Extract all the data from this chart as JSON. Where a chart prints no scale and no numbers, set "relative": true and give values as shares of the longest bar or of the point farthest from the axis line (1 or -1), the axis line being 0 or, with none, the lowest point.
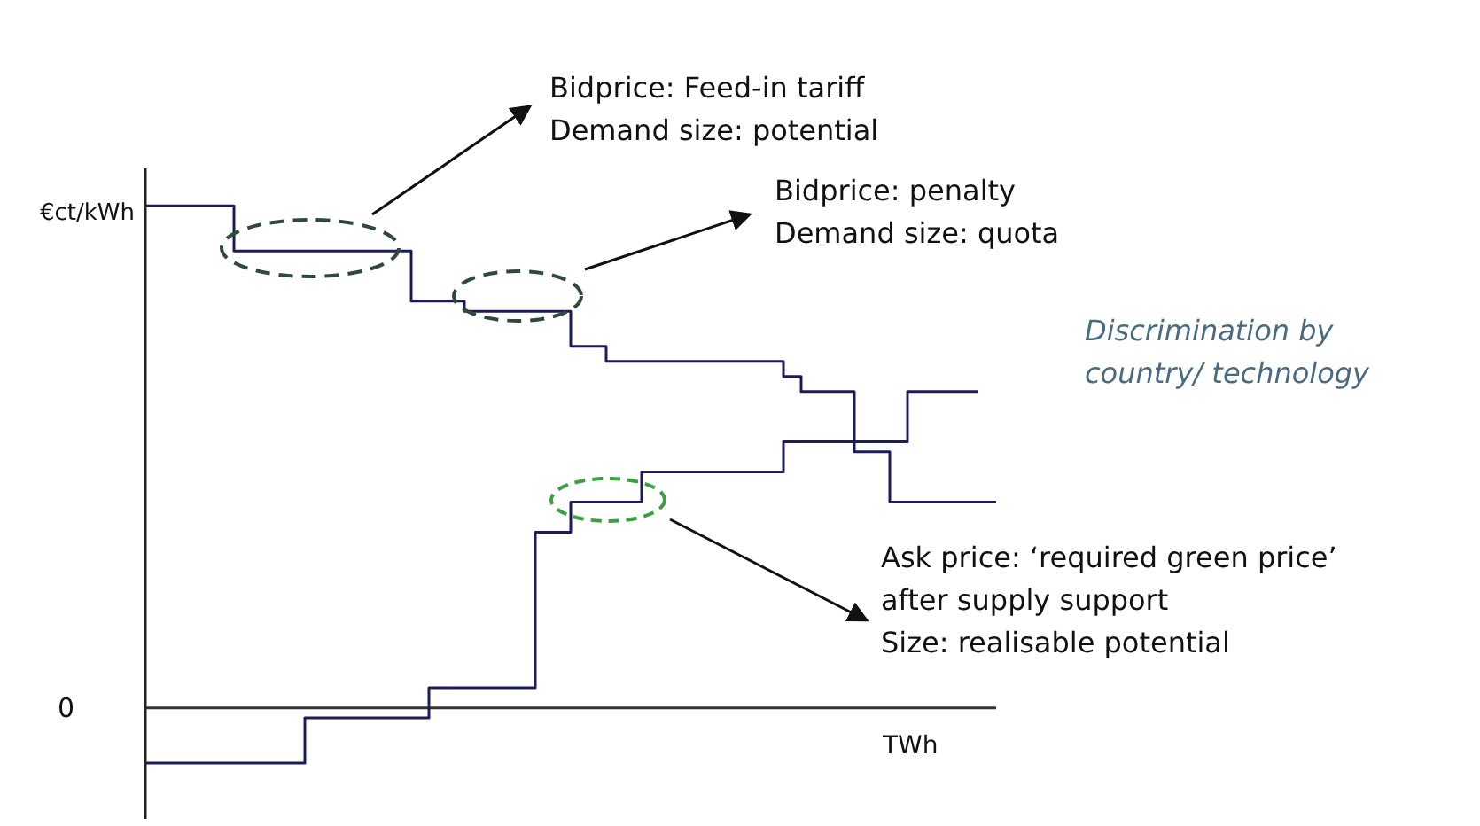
{
  "chart_data": {
    "type": "step",
    "relative": true,
    "ylabel": "€ct/kWh",
    "xlabel": "TWh",
    "categories": [
      null,
      null,
      null,
      null,
      null,
      null,
      null,
      null,
      null,
      null,
      null,
      null,
      null,
      null,
      null,
      null,
      null,
      null,
      null,
      null,
      null,
      null,
      null,
      null,
      null,
      null,
      null,
      null,
      null,
      null,
      null,
      null,
      null,
      null,
      null,
      null,
      null,
      null,
      null,
      null,
      null,
      null,
      null,
      null,
      null,
      null,
      null,
      null,
      null
    ],
    "series": [
      {
        "color": "#1c1c5a",
        "values": [
          1,
          1,
          1,
          1,
          1,
          0.91,
          0.91,
          0.91,
          0.91,
          0.91,
          0.91,
          0.91,
          0.91,
          0.91,
          0.91,
          0.81,
          0.81,
          0.81,
          0.79,
          0.79,
          0.79,
          0.79,
          0.79,
          0.79,
          0.72,
          0.72,
          0.69,
          0.69,
          0.69,
          0.69,
          0.69,
          0.69,
          0.69,
          0.69,
          0.69,
          0.69,
          0.66,
          0.63,
          0.63,
          0.63,
          0.51,
          0.51,
          0.41,
          0.41,
          0.41,
          0.41,
          0.41,
          0.41,
          0.41
        ]
      },
      {
        "color": "#1c1c5a",
        "values": [
          -0.11,
          -0.11,
          -0.11,
          -0.11,
          -0.11,
          -0.11,
          -0.11,
          -0.11,
          -0.11,
          -0.02,
          -0.02,
          -0.02,
          -0.02,
          -0.02,
          -0.02,
          -0.02,
          0.04,
          0.04,
          0.04,
          0.04,
          0.04,
          0.04,
          0.35,
          0.35,
          0.41,
          0.41,
          0.41,
          0.41,
          0.47,
          0.47,
          0.47,
          0.47,
          0.47,
          0.47,
          0.47,
          0.47,
          0.53,
          0.53,
          0.53,
          0.53,
          0.53,
          0.53,
          0.53,
          0.63,
          0.63,
          0.63,
          0.63,
          0.63,
          null
        ]
      }
    ],
    "ref_lines": [
      {
        "axis": "y",
        "value": 0,
        "label": "0",
        "color": "#333333"
      }
    ],
    "annotations": [
      "Bidprice: Feed-in tariff\nDemand size: potential",
      "Bidprice: penalty\nDemand size: quota",
      "Discrimination by\ncountry/ technology",
      "Ask price: ‘required green price’\nafter supply support\nSize: realisable potential"
    ]
  }
}
